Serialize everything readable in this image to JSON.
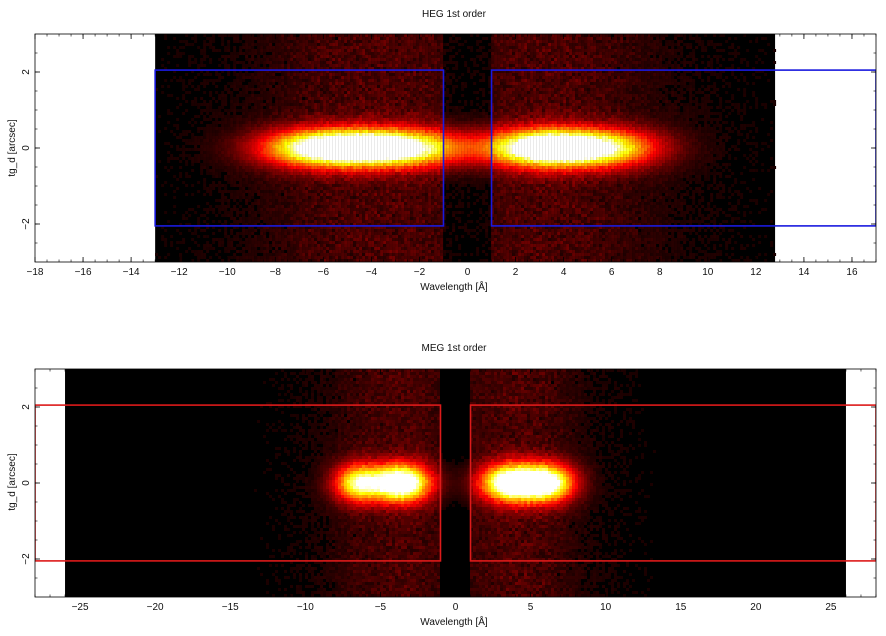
{
  "chart_data": [
    {
      "type": "heatmap",
      "title": "HEG 1st order",
      "xlabel": "Wavelength [Å]",
      "ylabel": "tg_d [arcsec]",
      "xlim": [
        -18,
        17
      ],
      "ylim": [
        -3,
        3
      ],
      "image_x_range": [
        -13,
        12.8
      ],
      "x_ticks": [
        -18,
        -16,
        -14,
        -12,
        -10,
        -8,
        -6,
        -4,
        -2,
        0,
        2,
        4,
        6,
        8,
        10,
        12,
        14,
        16
      ],
      "y_ticks": [
        -2,
        0,
        2
      ],
      "regions": [
        {
          "x": [
            -13,
            -1
          ],
          "y": [
            -2.05,
            2.05
          ]
        },
        {
          "x": [
            1,
            17
          ],
          "y": [
            -2.05,
            2.05
          ]
        }
      ],
      "blobs": [
        {
          "x": -3.5,
          "width": 4.0,
          "intensity": 1.0
        },
        {
          "x": -6.5,
          "width": 3.0,
          "intensity": 0.55
        },
        {
          "x": 3.3,
          "width": 3.0,
          "intensity": 1.0
        },
        {
          "x": 6.0,
          "width": 2.8,
          "intensity": 0.55
        }
      ],
      "box_color": "#1a1adf",
      "grid": false
    },
    {
      "type": "heatmap",
      "title": "MEG 1st order",
      "xlabel": "Wavelength [Å]",
      "ylabel": "tg_d [arcsec]",
      "xlim": [
        -28,
        28
      ],
      "ylim": [
        -3,
        3
      ],
      "image_x_range": [
        -26,
        26
      ],
      "x_ticks": [
        -25,
        -20,
        -15,
        -10,
        -5,
        0,
        5,
        10,
        15,
        20,
        25
      ],
      "y_ticks": [
        -2,
        0,
        2
      ],
      "regions": [
        {
          "x": [
            -28,
            -1
          ],
          "y": [
            -2.05,
            2.05
          ]
        },
        {
          "x": [
            1,
            28
          ],
          "y": [
            -2.05,
            2.05
          ]
        }
      ],
      "blobs": [
        {
          "x": -3.6,
          "width": 2.4,
          "intensity": 1.0
        },
        {
          "x": -6.5,
          "width": 2.0,
          "intensity": 0.7
        },
        {
          "x": 3.8,
          "width": 2.6,
          "intensity": 1.0
        },
        {
          "x": 6.3,
          "width": 2.2,
          "intensity": 0.75
        }
      ],
      "box_color": "#dd1a1a",
      "grid": false
    }
  ]
}
